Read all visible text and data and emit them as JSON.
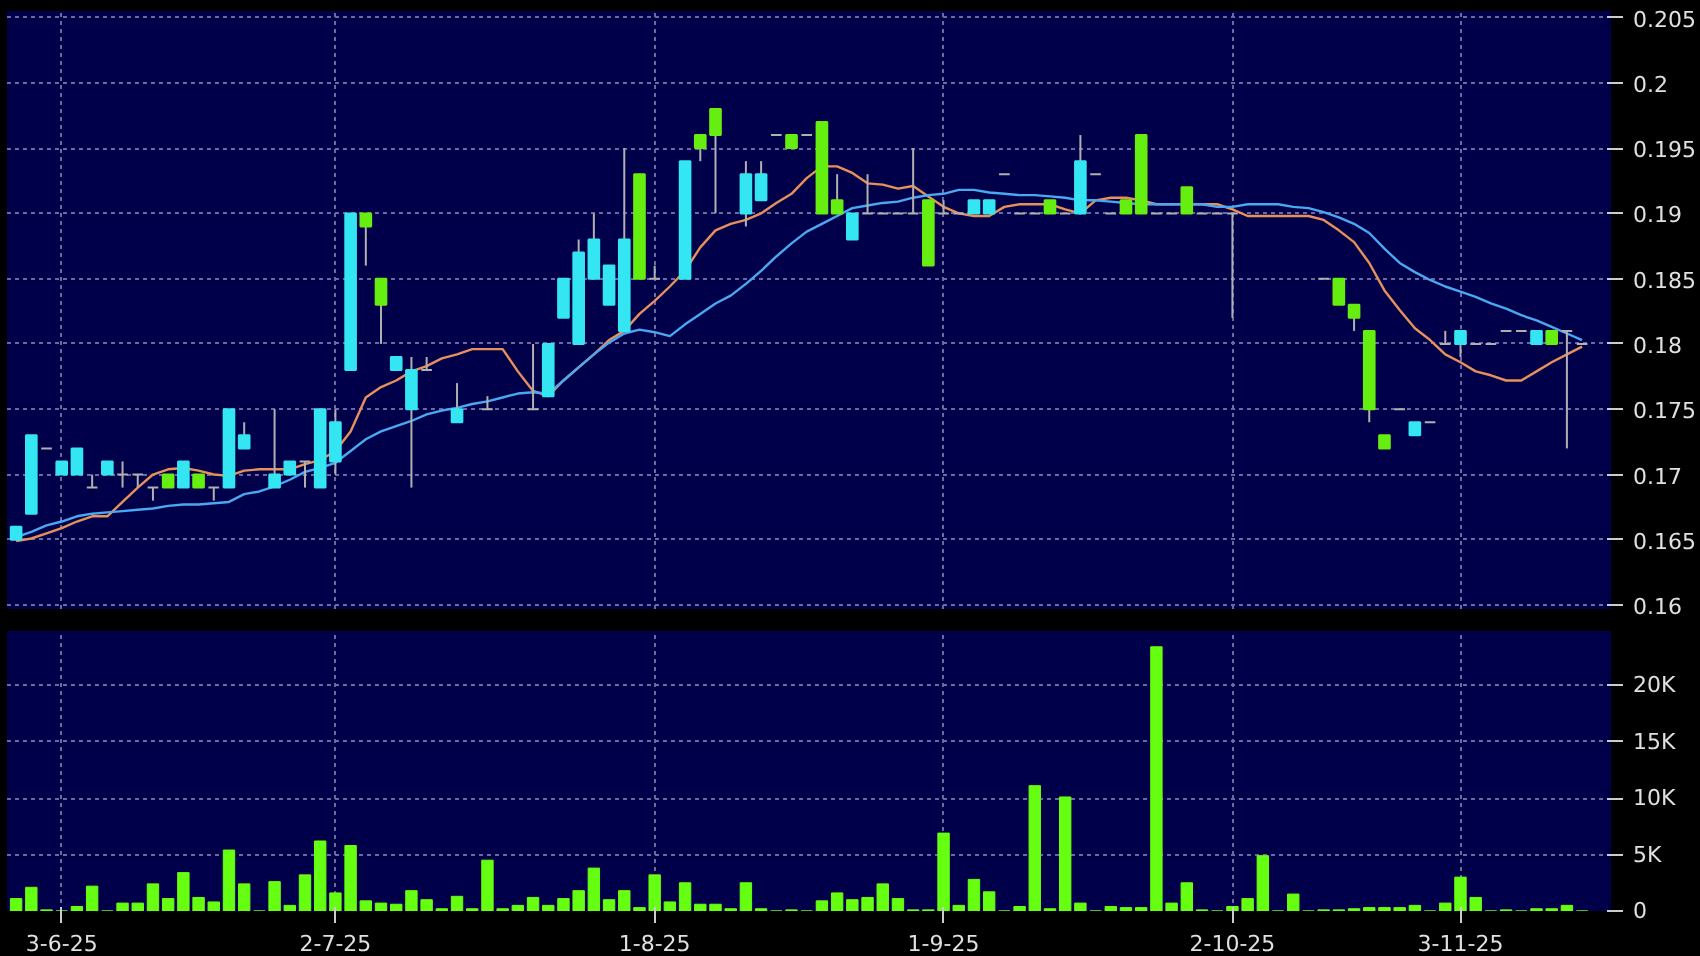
{
  "chart_data": [
    {
      "type": "candlestick",
      "categories": [
        null,
        null,
        null,
        null,
        null,
        null,
        null,
        null,
        null,
        null,
        null,
        null,
        null,
        null,
        null,
        null,
        null,
        null,
        null,
        null,
        null,
        null,
        null,
        null,
        null,
        null,
        null,
        null,
        null,
        null,
        null,
        null,
        null,
        null,
        null,
        null,
        null,
        null,
        null,
        null,
        null,
        null,
        null,
        null,
        null,
        null,
        null,
        null,
        null,
        null,
        null,
        null,
        null,
        null,
        null,
        null,
        null,
        null,
        null,
        null,
        null,
        null,
        null,
        null,
        null,
        null,
        null,
        null,
        null,
        null,
        null,
        null,
        null,
        null,
        null,
        null,
        null,
        null,
        null,
        null,
        null,
        null,
        null,
        null,
        null,
        null,
        null,
        null,
        null,
        null,
        null,
        null,
        null,
        null,
        null,
        null,
        null,
        null,
        null,
        null,
        null,
        null,
        null,
        null
      ],
      "ohlc": [
        [
          0.165,
          0.166,
          0.165,
          0.166
        ],
        [
          0.167,
          0.173,
          0.167,
          0.173
        ],
        [
          0.172,
          0.172,
          0.172,
          0.172
        ],
        [
          0.17,
          0.171,
          0.17,
          0.171
        ],
        [
          0.17,
          0.172,
          0.17,
          0.172
        ],
        [
          0.169,
          0.17,
          0.169,
          0.169
        ],
        [
          0.17,
          0.171,
          0.17,
          0.171
        ],
        [
          0.17,
          0.171,
          0.169,
          0.17
        ],
        [
          0.17,
          0.17,
          0.169,
          0.17
        ],
        [
          0.169,
          0.169,
          0.168,
          0.169
        ],
        [
          0.17,
          0.17,
          0.169,
          0.169
        ],
        [
          0.169,
          0.171,
          0.169,
          0.171
        ],
        [
          0.17,
          0.17,
          0.169,
          0.169
        ],
        [
          0.169,
          0.169,
          0.168,
          0.169
        ],
        [
          0.169,
          0.175,
          0.169,
          0.175
        ],
        [
          0.172,
          0.174,
          0.172,
          0.173
        ],
        null,
        [
          0.169,
          0.175,
          0.169,
          0.17
        ],
        [
          0.17,
          0.171,
          0.17,
          0.171
        ],
        [
          0.171,
          0.171,
          0.169,
          0.171
        ],
        [
          0.169,
          0.175,
          0.169,
          0.175
        ],
        [
          0.171,
          0.175,
          0.17,
          0.174
        ],
        [
          0.178,
          0.19,
          0.178,
          0.19
        ],
        [
          0.19,
          0.19,
          0.186,
          0.189
        ],
        [
          0.185,
          0.185,
          0.18,
          0.183
        ],
        [
          0.178,
          0.179,
          0.178,
          0.179
        ],
        [
          0.175,
          0.179,
          0.169,
          0.178
        ],
        [
          0.178,
          0.179,
          0.178,
          0.178
        ],
        null,
        [
          0.174,
          0.177,
          0.174,
          0.175
        ],
        null,
        [
          0.175,
          0.176,
          0.175,
          0.175
        ],
        null,
        null,
        [
          0.175,
          0.18,
          0.175,
          0.175
        ],
        [
          0.176,
          0.18,
          0.176,
          0.18
        ],
        [
          0.182,
          0.185,
          0.182,
          0.185
        ],
        [
          0.18,
          0.188,
          0.18,
          0.187
        ],
        [
          0.185,
          0.19,
          0.185,
          0.188
        ],
        [
          0.183,
          0.186,
          0.183,
          0.186
        ],
        [
          0.181,
          0.195,
          0.181,
          0.188
        ],
        [
          0.193,
          0.193,
          0.185,
          0.185
        ],
        [
          0.185,
          0.186,
          0.185,
          0.185
        ],
        null,
        [
          0.185,
          0.194,
          0.185,
          0.194
        ],
        [
          0.196,
          0.196,
          0.194,
          0.195
        ],
        [
          0.198,
          0.198,
          0.19,
          0.196
        ],
        null,
        [
          0.19,
          0.194,
          0.189,
          0.193
        ],
        [
          0.191,
          0.194,
          0.191,
          0.193
        ],
        [
          0.196,
          0.196,
          0.196,
          0.196
        ],
        [
          0.196,
          0.196,
          0.195,
          0.195
        ],
        [
          0.196,
          0.196,
          0.196,
          0.196
        ],
        [
          0.197,
          0.197,
          0.19,
          0.19
        ],
        [
          0.191,
          0.193,
          0.19,
          0.19
        ],
        [
          0.188,
          0.19,
          0.188,
          0.19
        ],
        [
          0.19,
          0.193,
          0.19,
          0.19
        ],
        [
          0.19,
          0.19,
          0.19,
          0.19
        ],
        [
          0.19,
          0.19,
          0.19,
          0.19
        ],
        [
          0.19,
          0.195,
          0.19,
          0.19
        ],
        [
          0.191,
          0.191,
          0.186,
          0.186
        ],
        [
          0.19,
          0.191,
          0.19,
          0.19
        ],
        [
          0.19,
          0.19,
          0.19,
          0.19
        ],
        [
          0.19,
          0.191,
          0.19,
          0.191
        ],
        [
          0.19,
          0.191,
          0.19,
          0.191
        ],
        [
          0.193,
          0.193,
          0.193,
          0.193
        ],
        [
          0.19,
          0.19,
          0.19,
          0.19
        ],
        [
          0.19,
          0.19,
          0.19,
          0.19
        ],
        [
          0.191,
          0.191,
          0.19,
          0.19
        ],
        [
          0.19,
          0.19,
          0.19,
          0.19
        ],
        [
          0.19,
          0.196,
          0.19,
          0.194
        ],
        [
          0.193,
          0.193,
          0.193,
          0.193
        ],
        [
          0.19,
          0.19,
          0.19,
          0.19
        ],
        [
          0.191,
          0.191,
          0.19,
          0.19
        ],
        [
          0.196,
          0.196,
          0.19,
          0.19
        ],
        [
          0.19,
          0.19,
          0.19,
          0.19
        ],
        [
          0.19,
          0.19,
          0.19,
          0.19
        ],
        [
          0.192,
          0.192,
          0.19,
          0.19
        ],
        [
          0.19,
          0.19,
          0.19,
          0.19
        ],
        [
          0.19,
          0.19,
          0.19,
          0.19
        ],
        [
          0.19,
          0.19,
          0.182,
          0.19
        ],
        null,
        null,
        null,
        null,
        null,
        [
          0.185,
          0.185,
          0.185,
          0.185
        ],
        [
          0.185,
          0.185,
          0.183,
          0.183
        ],
        [
          0.183,
          0.183,
          0.181,
          0.182
        ],
        [
          0.181,
          0.181,
          0.174,
          0.175
        ],
        [
          0.173,
          0.173,
          0.172,
          0.172
        ],
        [
          0.175,
          0.175,
          0.175,
          0.175
        ],
        [
          0.173,
          0.174,
          0.173,
          0.174
        ],
        [
          0.174,
          0.174,
          0.174,
          0.174
        ],
        [
          0.18,
          0.181,
          0.18,
          0.18
        ],
        [
          0.18,
          0.181,
          0.179,
          0.181
        ],
        [
          0.18,
          0.18,
          0.18,
          0.18
        ],
        [
          0.18,
          0.18,
          0.18,
          0.18
        ],
        [
          0.181,
          0.181,
          0.181,
          0.181
        ],
        [
          0.181,
          0.181,
          0.181,
          0.181
        ],
        [
          0.18,
          0.181,
          0.18,
          0.181
        ],
        [
          0.181,
          0.181,
          0.18,
          0.18
        ],
        [
          0.181,
          0.181,
          0.172,
          0.181
        ],
        [
          0.18,
          0.18,
          0.18,
          0.18
        ]
      ],
      "colors": [
        "#33e6f2",
        "#33e6f2",
        "#b0b0b0",
        "#33e6f2",
        "#33e6f2",
        "#b0b0b0",
        "#33e6f2",
        "#b0b0b0",
        "#b0b0b0",
        "#b0b0b0",
        "#66ee11",
        "#33e6f2",
        "#66ee11",
        "#b0b0b0",
        "#33e6f2",
        "#33e6f2",
        null,
        "#33e6f2",
        "#33e6f2",
        "#b0b0b0",
        "#33e6f2",
        "#33e6f2",
        "#33e6f2",
        "#66ee11",
        "#66ee11",
        "#33e6f2",
        "#33e6f2",
        "#b0b0b0",
        null,
        "#33e6f2",
        null,
        "#b0b0b0",
        null,
        null,
        "#b0b0b0",
        "#33e6f2",
        "#33e6f2",
        "#33e6f2",
        "#33e6f2",
        "#33e6f2",
        "#33e6f2",
        "#66ee11",
        "#b0b0b0",
        null,
        "#33e6f2",
        "#66ee11",
        "#66ee11",
        null,
        "#33e6f2",
        "#33e6f2",
        "#b0b0b0",
        "#66ee11",
        "#b0b0b0",
        "#66ee11",
        "#66ee11",
        "#33e6f2",
        "#b0b0b0",
        "#b0b0b0",
        "#b0b0b0",
        "#b0b0b0",
        "#66ee11",
        "#b0b0b0",
        "#b0b0b0",
        "#33e6f2",
        "#33e6f2",
        "#b0b0b0",
        "#b0b0b0",
        "#b0b0b0",
        "#66ee11",
        "#b0b0b0",
        "#33e6f2",
        "#b0b0b0",
        "#b0b0b0",
        "#66ee11",
        "#66ee11",
        "#b0b0b0",
        "#b0b0b0",
        "#66ee11",
        "#b0b0b0",
        "#b0b0b0",
        "#b0b0b0",
        null,
        null,
        null,
        null,
        null,
        "#b0b0b0",
        "#66ee11",
        "#66ee11",
        "#66ee11",
        "#66ee11",
        "#b0b0b0",
        "#33e6f2",
        "#b0b0b0",
        "#b0b0b0",
        "#33e6f2",
        "#b0b0b0",
        "#b0b0b0",
        "#b0b0b0",
        "#b0b0b0",
        "#33e6f2",
        "#66ee11",
        "#b0b0b0",
        "#b0b0b0"
      ],
      "series": [
        {
          "type": "line",
          "color": "#e8905a",
          "values": [
            0.1649,
            0.1651,
            0.1655,
            0.1659,
            0.1664,
            0.1668,
            0.1668,
            0.1679,
            0.169,
            0.17,
            0.1704,
            0.1705,
            0.1703,
            0.17,
            0.1699,
            0.1703,
            0.1704,
            0.1704,
            0.1704,
            0.1708,
            0.1711,
            0.1718,
            0.1733,
            0.1759,
            0.1767,
            0.1772,
            0.1779,
            0.1783,
            0.1789,
            0.1792,
            0.1796,
            0.1796,
            0.1796,
            0.1779,
            0.1764,
            0.176,
            0.1772,
            0.1782,
            0.1792,
            0.1803,
            0.181,
            0.1823,
            0.1833,
            0.1844,
            0.1856,
            0.1874,
            0.1887,
            0.1892,
            0.1895,
            0.19,
            0.1908,
            0.1915,
            0.1927,
            0.1936,
            0.1936,
            0.1931,
            0.1923,
            0.1922,
            0.1919,
            0.1921,
            0.1913,
            0.1905,
            0.19,
            0.1898,
            0.1898,
            0.1905,
            0.1907,
            0.1907,
            0.1907,
            0.1903,
            0.19,
            0.191,
            0.1912,
            0.1912,
            0.191,
            0.1907,
            0.1907,
            0.1907,
            0.1907,
            0.1907,
            0.1903,
            0.1898,
            0.1898,
            0.1898,
            0.1898,
            0.1898,
            0.1895,
            0.1887,
            0.1878,
            0.1862,
            0.1841,
            0.1826,
            0.1812,
            0.1803,
            0.1792,
            0.1786,
            0.1779,
            0.1776,
            0.1772,
            0.1772,
            0.1779,
            0.1786,
            0.1792,
            0.1798
          ]
        },
        {
          "type": "line",
          "color": "#4aa8f0",
          "values": [
            0.1652,
            0.1656,
            0.1661,
            0.1664,
            0.1668,
            0.167,
            0.1671,
            0.1672,
            0.1673,
            0.1674,
            0.1676,
            0.1677,
            0.1677,
            0.1678,
            0.1679,
            0.1685,
            0.1687,
            0.1691,
            0.1696,
            0.1702,
            0.1705,
            0.1709,
            0.1718,
            0.1727,
            0.1733,
            0.1737,
            0.1741,
            0.1746,
            0.1749,
            0.1751,
            0.1754,
            0.1756,
            0.1759,
            0.1762,
            0.1763,
            0.1762,
            0.1772,
            0.1782,
            0.1792,
            0.1801,
            0.1808,
            0.1811,
            0.1809,
            0.1806,
            0.1815,
            0.1823,
            0.1831,
            0.1837,
            0.1846,
            0.1856,
            0.1867,
            0.1877,
            0.1886,
            0.1892,
            0.1898,
            0.1904,
            0.1906,
            0.1908,
            0.1909,
            0.1912,
            0.1914,
            0.1915,
            0.1918,
            0.1918,
            0.1916,
            0.1915,
            0.1914,
            0.1914,
            0.1913,
            0.1912,
            0.191,
            0.191,
            0.1909,
            0.1908,
            0.1907,
            0.1907,
            0.1907,
            0.1907,
            0.1907,
            0.1905,
            0.1905,
            0.1907,
            0.1907,
            0.1907,
            0.1905,
            0.1904,
            0.1901,
            0.1897,
            0.1892,
            0.1885,
            0.1873,
            0.1862,
            0.1855,
            0.1849,
            0.1844,
            0.184,
            0.1836,
            0.1831,
            0.1827,
            0.1822,
            0.1818,
            0.1813,
            0.1808,
            0.1803
          ]
        }
      ],
      "ylim": [
        0.1597,
        0.2055
      ],
      "yticks": [
        0.16,
        0.165,
        0.17,
        0.175,
        0.18,
        0.185,
        0.19,
        0.195,
        0.2,
        0.205
      ],
      "grid": true,
      "tick_labels": "y"
    },
    {
      "type": "bar",
      "categories": [
        null,
        null,
        null,
        "3-6-25",
        null,
        null,
        null,
        null,
        null,
        null,
        null,
        null,
        null,
        null,
        null,
        null,
        null,
        null,
        null,
        null,
        null,
        "2-7-25",
        null,
        null,
        null,
        null,
        null,
        null,
        null,
        null,
        null,
        null,
        null,
        null,
        null,
        null,
        null,
        null,
        null,
        null,
        null,
        null,
        "1-8-25",
        null,
        null,
        null,
        null,
        null,
        null,
        null,
        null,
        null,
        null,
        null,
        null,
        null,
        null,
        null,
        null,
        null,
        null,
        "1-9-25",
        null,
        null,
        null,
        null,
        null,
        null,
        null,
        null,
        null,
        null,
        null,
        null,
        null,
        null,
        null,
        null,
        null,
        null,
        "2-10-25",
        null,
        null,
        null,
        null,
        null,
        null,
        null,
        null,
        null,
        null,
        null,
        null,
        null,
        null,
        "3-11-25",
        null,
        null,
        null,
        null,
        null,
        null,
        null,
        null
      ],
      "values": [
        1100,
        2100,
        100,
        0,
        400,
        2200,
        0,
        700,
        700,
        2400,
        1100,
        3400,
        1200,
        800,
        5400,
        2400,
        0,
        2600,
        500,
        3200,
        6200,
        1600,
        5800,
        900,
        700,
        600,
        1800,
        1000,
        200,
        1300,
        200,
        4500,
        200,
        500,
        1200,
        500,
        1100,
        1800,
        3800,
        1000,
        1800,
        300,
        3200,
        800,
        2500,
        600,
        600,
        200,
        2500,
        200,
        0,
        100,
        0,
        900,
        1600,
        1000,
        1200,
        2400,
        1100,
        100,
        100,
        6900,
        500,
        2800,
        1700,
        0,
        400,
        11100,
        200,
        10100,
        700,
        0,
        400,
        300,
        300,
        23400,
        700,
        2500,
        100,
        0,
        400,
        1100,
        4900,
        0,
        1500,
        0,
        100,
        100,
        200,
        300,
        300,
        300,
        500,
        0,
        700,
        3000,
        1200,
        0,
        100,
        0,
        200,
        200,
        500,
        0
      ],
      "color": "#66ff11",
      "ylim": [
        0,
        24800
      ],
      "yticks": [
        {
          "value": 0,
          "label": "0"
        },
        {
          "value": 5000,
          "label": "5K"
        },
        {
          "value": 10000,
          "label": "10K"
        },
        {
          "value": 15000,
          "label": "15K"
        },
        {
          "value": 20000,
          "label": "20K"
        }
      ],
      "grid": true
    }
  ]
}
